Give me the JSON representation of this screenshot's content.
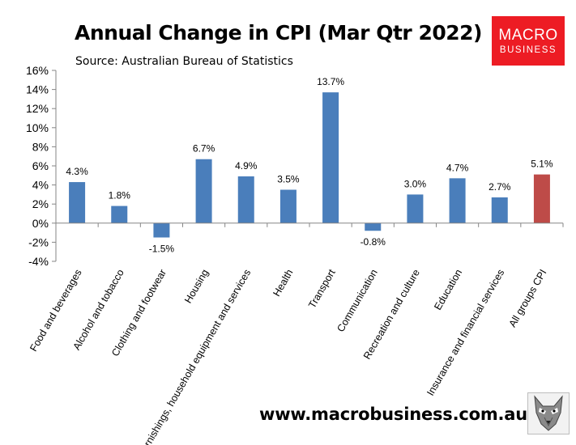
{
  "header": {
    "title": "Annual Change in CPI (Mar Qtr 2022)",
    "source": "Source: Australian Bureau of Statistics"
  },
  "logo": {
    "line1": "MACRO",
    "line2": "BUSINESS"
  },
  "footer": {
    "website": "www.macrobusiness.com.au",
    "mascot_icon": "wolf-icon"
  },
  "colors": {
    "bar": "#4a7ebb",
    "highlight_bar": "#be4b48",
    "axis": "#868686",
    "logo_bg": "#ed1c24"
  },
  "chart_data": {
    "type": "bar",
    "title": "Annual Change in CPI (Mar Qtr 2022)",
    "xlabel": "",
    "ylabel": "",
    "ylim": [
      -4,
      16
    ],
    "ytick_step": 2,
    "ytick_format": "{v}%",
    "grid": false,
    "legend": "none",
    "categories": [
      "Food and beverages",
      "Alcohol and tobacco",
      "Clothing and footwear",
      "Housing",
      "Furnishings, household equipment and services",
      "Health",
      "Transport",
      "Communication",
      "Recreation and culture",
      "Education",
      "Insurance and financial services",
      "All groups CPI"
    ],
    "values": [
      4.3,
      1.8,
      -1.5,
      6.7,
      4.9,
      3.5,
      13.7,
      -0.8,
      3.0,
      4.7,
      2.7,
      5.1
    ],
    "data_labels": [
      "4.3%",
      "1.8%",
      "-1.5%",
      "6.7%",
      "4.9%",
      "3.5%",
      "13.7%",
      "-0.8%",
      "3.0%",
      "4.7%",
      "2.7%",
      "5.1%"
    ],
    "highlight_index": 11
  }
}
